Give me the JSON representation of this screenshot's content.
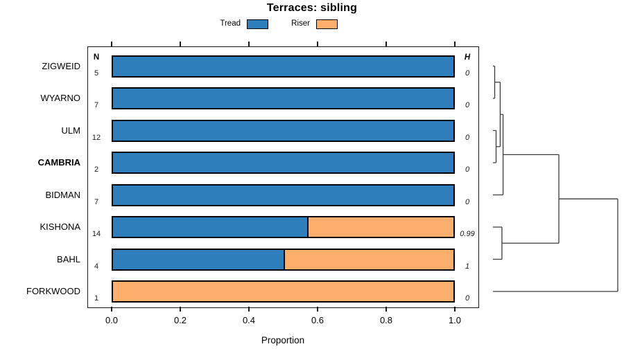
{
  "title": "Terraces: sibling",
  "legend": {
    "items": [
      {
        "label": "Tread",
        "color_key": "tread"
      },
      {
        "label": "Riser",
        "color_key": "riser"
      }
    ]
  },
  "table_headers": {
    "n": "N",
    "h": "H"
  },
  "axis": {
    "xlabel": "Proportion",
    "ticks": [
      {
        "v": 0.0,
        "label": "0.0"
      },
      {
        "v": 0.2,
        "label": "0.2"
      },
      {
        "v": 0.4,
        "label": "0.4"
      },
      {
        "v": 0.6,
        "label": "0.6"
      },
      {
        "v": 0.8,
        "label": "0.8"
      },
      {
        "v": 1.0,
        "label": "1.0"
      }
    ]
  },
  "colors": {
    "tread": "#2E7EBC",
    "riser": "#FDAE6B",
    "dendrogram_line": "#3a3a3a",
    "text": "#000000"
  },
  "chart_data": {
    "type": "bar",
    "orientation": "horizontal",
    "stacked": true,
    "title": "Terraces: sibling",
    "xlabel": "Proportion",
    "xlim": [
      0,
      1
    ],
    "grid": false,
    "legend_position": "top",
    "categories": [
      "ZIGWEID",
      "WYARNO",
      "ULM",
      "CAMBRIA",
      "BIDMAN",
      "KISHONA",
      "BAHL",
      "FORKWOOD"
    ],
    "bold_category": "CAMBRIA",
    "N": [
      5,
      7,
      12,
      2,
      7,
      14,
      4,
      1
    ],
    "H": [
      "0",
      "0",
      "0",
      "0",
      "0",
      "0.99",
      "1",
      "0"
    ],
    "series": [
      {
        "name": "Tread",
        "values": [
          1,
          1,
          1,
          1,
          1,
          0.571,
          0.5,
          0
        ]
      },
      {
        "name": "Riser",
        "values": [
          0,
          0,
          0,
          0,
          0,
          0.429,
          0.5,
          1
        ]
      }
    ],
    "dendrogram": {
      "description": "right-side cluster tree over row order, heights normalized 0-1",
      "merges": [
        [
          0,
          1,
          0.014
        ],
        [
          2,
          3,
          0.025
        ],
        [
          8,
          9,
          0.058
        ],
        [
          10,
          4,
          0.081
        ],
        [
          5,
          6,
          0.072
        ],
        [
          11,
          12,
          0.528
        ],
        [
          13,
          7,
          1.0
        ]
      ]
    }
  }
}
